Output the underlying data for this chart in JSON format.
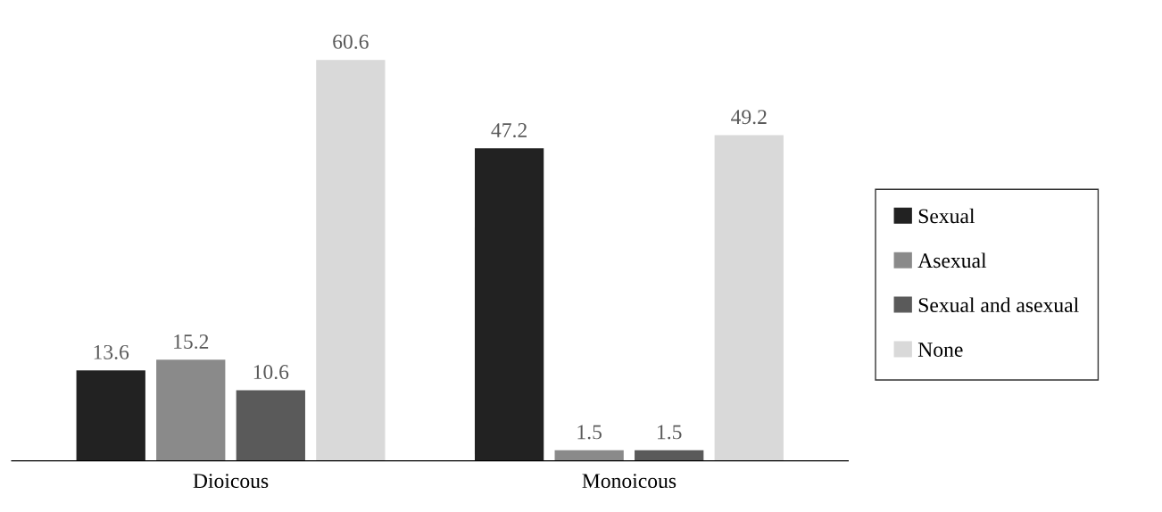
{
  "chart_data": {
    "type": "bar",
    "categories": [
      "Dioicous",
      "Monoicous"
    ],
    "series": [
      {
        "name": "Sexual",
        "color": "#222222",
        "values": [
          13.6,
          47.2
        ]
      },
      {
        "name": "Asexual",
        "color": "#8a8a8a",
        "values": [
          15.2,
          1.5
        ]
      },
      {
        "name": "Sexual and asexual",
        "color": "#5a5a5a",
        "values": [
          10.6,
          1.5
        ]
      },
      {
        "name": "None",
        "color": "#d9d9d9",
        "values": [
          60.6,
          49.2
        ]
      }
    ],
    "data_labels": true,
    "legend": "right",
    "grid": false
  }
}
